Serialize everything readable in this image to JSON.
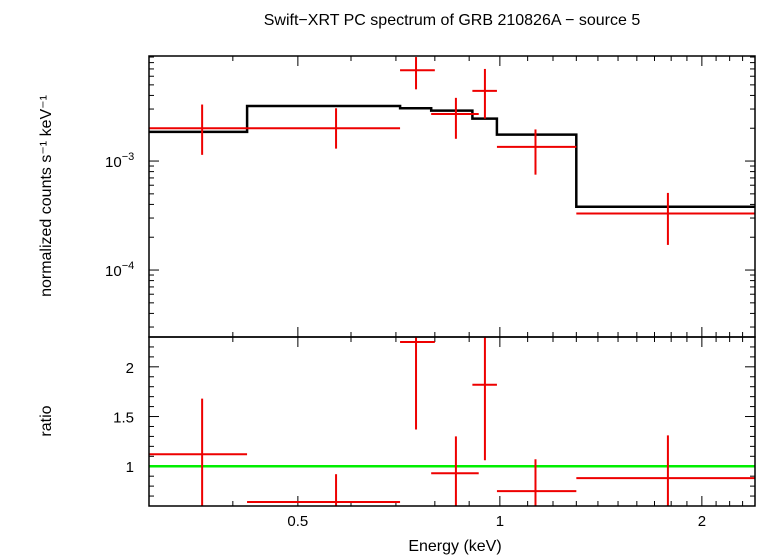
{
  "chart_data": [
    {
      "type": "line",
      "panel": "spectrum",
      "title": "Swift−XRT PC spectrum of GRB 210826A − source 5",
      "xlabel": "Energy (keV)",
      "ylabel": "normalized counts s⁻¹ keV⁻¹",
      "xscale": "log",
      "yscale": "log",
      "xlim": [
        0.3,
        2.4
      ],
      "ylim": [
        2.43e-05,
        0.0092
      ],
      "ytick_labels": [
        {
          "value": 0.001,
          "base": "10",
          "exp": "−3"
        },
        {
          "value": 0.0001,
          "base": "10",
          "exp": "−4"
        }
      ],
      "series": [
        {
          "role": "data",
          "color": "#ee0000",
          "points": [
            {
              "x": 0.36,
              "xlo": 0.3,
              "xhi": 0.42,
              "y": 0.002,
              "ylo": 0.00114,
              "yhi": 0.0033
            },
            {
              "x": 0.57,
              "xlo": 0.42,
              "xhi": 0.71,
              "y": 0.002,
              "ylo": 0.0013,
              "yhi": 0.00305
            },
            {
              "x": 0.75,
              "xlo": 0.71,
              "xhi": 0.8,
              "y": 0.0068,
              "ylo": 0.00455,
              "yhi": 0.009
            },
            {
              "x": 0.86,
              "xlo": 0.79,
              "xhi": 0.93,
              "y": 0.0027,
              "ylo": 0.0016,
              "yhi": 0.0038
            },
            {
              "x": 0.95,
              "xlo": 0.91,
              "xhi": 0.99,
              "y": 0.0044,
              "ylo": 0.00245,
              "yhi": 0.007
            },
            {
              "x": 1.13,
              "xlo": 0.99,
              "xhi": 1.3,
              "y": 0.00135,
              "ylo": 0.00075,
              "yhi": 0.00195
            },
            {
              "x": 1.78,
              "xlo": 1.3,
              "xhi": 2.4,
              "y": 0.00033,
              "ylo": 0.00017,
              "yhi": 0.00051
            }
          ]
        },
        {
          "role": "model",
          "color": "#000000",
          "steps": [
            {
              "xlo": 0.3,
              "xhi": 0.42,
              "y": 0.00185
            },
            {
              "xlo": 0.42,
              "xhi": 0.71,
              "y": 0.0032
            },
            {
              "xlo": 0.71,
              "xhi": 0.79,
              "y": 0.00305
            },
            {
              "xlo": 0.79,
              "xhi": 0.91,
              "y": 0.0029
            },
            {
              "xlo": 0.91,
              "xhi": 0.99,
              "y": 0.00245
            },
            {
              "xlo": 0.99,
              "xhi": 1.3,
              "y": 0.00175
            },
            {
              "xlo": 1.3,
              "xhi": 2.4,
              "y": 0.00038
            }
          ]
        }
      ]
    },
    {
      "type": "scatter",
      "panel": "ratio",
      "xlabel": "Energy (keV)",
      "ylabel": "ratio",
      "xscale": "log",
      "xlim": [
        0.3,
        2.4
      ],
      "ylim": [
        0.6,
        2.3
      ],
      "xticks": [
        0.5,
        1,
        2
      ],
      "xtick_labels": [
        "0.5",
        "1",
        "2"
      ],
      "yticks": [
        1,
        1.5,
        2
      ],
      "ytick_labels": [
        "1",
        "1.5",
        "2"
      ],
      "reference_line": {
        "y": 1,
        "color": "#00ee00"
      },
      "series": [
        {
          "role": "data",
          "color": "#ee0000",
          "points": [
            {
              "x": 0.36,
              "xlo": 0.3,
              "xhi": 0.42,
              "y": 1.12,
              "ylo": 0.6,
              "yhi": 1.68
            },
            {
              "x": 0.57,
              "xlo": 0.42,
              "xhi": 0.71,
              "y": 0.64,
              "ylo": 0.6,
              "yhi": 0.92
            },
            {
              "x": 0.75,
              "xlo": 0.71,
              "xhi": 0.8,
              "y": 2.25,
              "ylo": 1.37,
              "yhi": 2.3
            },
            {
              "x": 0.86,
              "xlo": 0.79,
              "xhi": 0.93,
              "y": 0.93,
              "ylo": 0.6,
              "yhi": 1.3
            },
            {
              "x": 0.95,
              "xlo": 0.91,
              "xhi": 0.99,
              "y": 1.82,
              "ylo": 1.06,
              "yhi": 2.3
            },
            {
              "x": 1.13,
              "xlo": 0.99,
              "xhi": 1.3,
              "y": 0.75,
              "ylo": 0.6,
              "yhi": 1.07
            },
            {
              "x": 1.78,
              "xlo": 1.3,
              "xhi": 2.4,
              "y": 0.88,
              "ylo": 0.6,
              "yhi": 1.31
            }
          ]
        }
      ]
    }
  ]
}
